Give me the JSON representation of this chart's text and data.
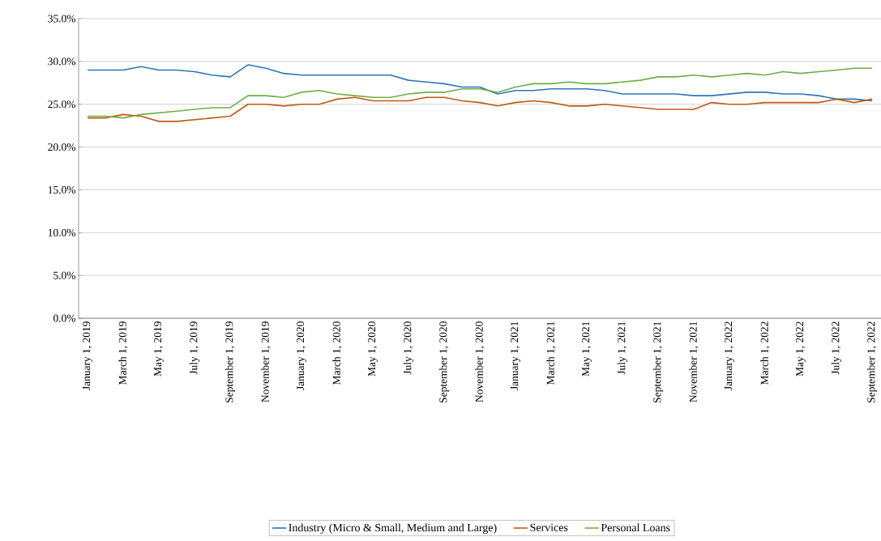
{
  "chart_data": {
    "type": "line",
    "categories": [
      "January 1, 2019",
      null,
      "March 1, 2019",
      null,
      "May 1, 2019",
      null,
      "July 1, 2019",
      null,
      "September 1, 2019",
      null,
      "November 1, 2019",
      null,
      "January 1, 2020",
      null,
      "March 1, 2020",
      null,
      "May 1, 2020",
      null,
      "July 1, 2020",
      null,
      "September 1, 2020",
      null,
      "November 1, 2020",
      null,
      "January 1, 2021",
      null,
      "March 1, 2021",
      null,
      "May 1, 2021",
      null,
      "July 1, 2021",
      null,
      "September 1, 2021",
      null,
      "November 1, 2021",
      null,
      "January 1, 2022",
      null,
      "March 1, 2022",
      null,
      "May 1, 2022",
      null,
      "July 1, 2022",
      null,
      "September 1, 2022"
    ],
    "series": [
      {
        "name": "Industry (Micro & Small, Medium and Large)",
        "color": "#2e75b6",
        "values": [
          29.0,
          29.0,
          29.0,
          29.4,
          29.0,
          29.0,
          28.8,
          28.4,
          28.2,
          29.6,
          29.2,
          28.6,
          28.4,
          28.4,
          28.4,
          28.4,
          28.4,
          28.4,
          27.8,
          27.6,
          27.4,
          27.0,
          27.0,
          26.2,
          26.6,
          26.6,
          26.8,
          26.8,
          26.8,
          26.6,
          26.2,
          26.2,
          26.2,
          26.2,
          26.0,
          26.0,
          26.2,
          26.4,
          26.4,
          26.2,
          26.2,
          26.0,
          25.6,
          25.6,
          25.4
        ]
      },
      {
        "name": "Services",
        "color": "#c55a11",
        "values": [
          23.4,
          23.4,
          23.8,
          23.6,
          23.0,
          23.0,
          23.2,
          23.4,
          23.6,
          25.0,
          25.0,
          24.8,
          25.0,
          25.0,
          25.6,
          25.8,
          25.4,
          25.4,
          25.4,
          25.8,
          25.8,
          25.4,
          25.2,
          24.8,
          25.2,
          25.4,
          25.2,
          24.8,
          24.8,
          25.0,
          24.8,
          24.6,
          24.4,
          24.4,
          24.4,
          25.2,
          25.0,
          25.0,
          25.2,
          25.2,
          25.2,
          25.2,
          25.6,
          25.2,
          25.6
        ]
      },
      {
        "name": "Personal Loans",
        "color": "#70ad47",
        "values": [
          23.6,
          23.6,
          23.4,
          23.8,
          24.0,
          24.2,
          24.4,
          24.6,
          24.6,
          26.0,
          26.0,
          25.8,
          26.4,
          26.6,
          26.2,
          26.0,
          25.8,
          25.8,
          26.2,
          26.4,
          26.4,
          26.8,
          26.8,
          26.4,
          27.0,
          27.4,
          27.4,
          27.6,
          27.4,
          27.4,
          27.6,
          27.8,
          28.2,
          28.2,
          28.4,
          28.2,
          28.4,
          28.6,
          28.4,
          28.8,
          28.6,
          28.8,
          29.0,
          29.2,
          29.2
        ]
      }
    ],
    "ylim": [
      0,
      35
    ],
    "yticks": [
      {
        "value": 0,
        "label": "0.0%"
      },
      {
        "value": 5,
        "label": "5.0%"
      },
      {
        "value": 10,
        "label": "10.0%"
      },
      {
        "value": 15,
        "label": "15.0%"
      },
      {
        "value": 20,
        "label": "20.0%"
      },
      {
        "value": 25,
        "label": "25.0%"
      },
      {
        "value": 30,
        "label": "30.0%"
      },
      {
        "value": 35,
        "label": "35.0%"
      }
    ],
    "grid": "y",
    "legend": "bottom",
    "marker": "none",
    "line_style": "solid"
  }
}
